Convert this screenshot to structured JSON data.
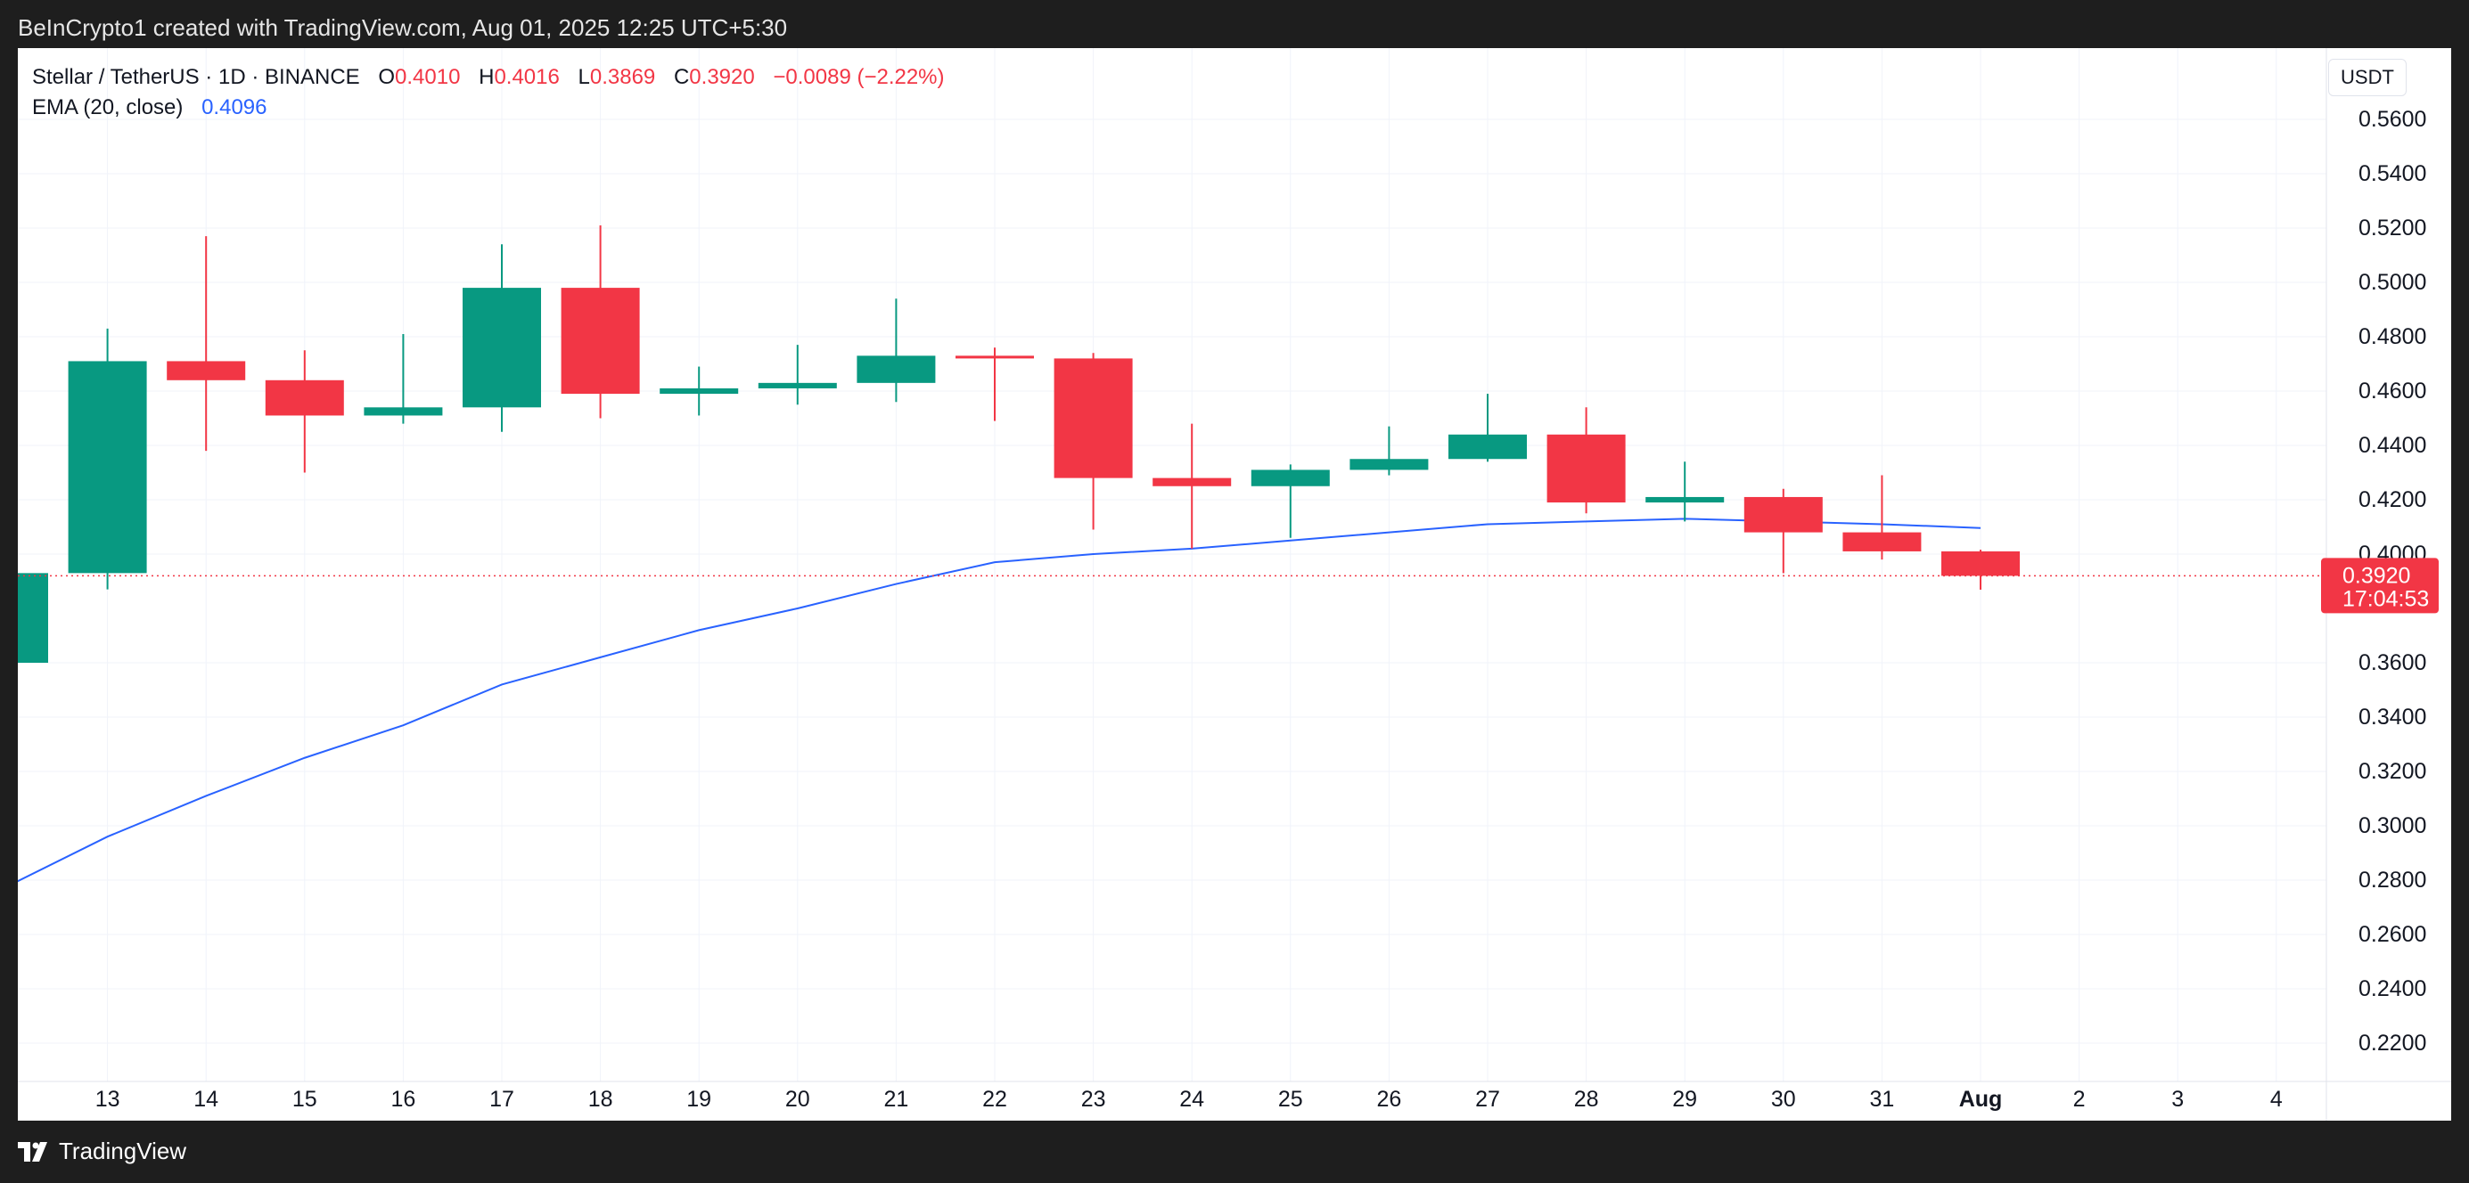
{
  "header": {
    "credit": "BeInCrypto1 created with TradingView.com, Aug 01, 2025 12:25 UTC+5:30"
  },
  "legend": {
    "symbol": "Stellar / TetherUS · 1D · BINANCE",
    "open_label": "O",
    "open": "0.4010",
    "high_label": "H",
    "high": "0.4016",
    "low_label": "L",
    "low": "0.3869",
    "close_label": "C",
    "close": "0.3920",
    "change": "−0.0089 (−2.22%)",
    "ema_label": "EMA (20, close)",
    "ema_value": "0.4096"
  },
  "currency": "USDT",
  "price_tag": {
    "price": "0.3920",
    "countdown": "17:04:53"
  },
  "footer": {
    "brand": "TradingView"
  },
  "colors": {
    "up": "#089981",
    "down": "#f23645",
    "ema": "#2962ff",
    "grid": "#f0f3fa"
  },
  "chart_data": {
    "type": "candlestick",
    "ylim": [
      0.21,
      0.57
    ],
    "y_ticks": [
      "0.5600",
      "0.5400",
      "0.5200",
      "0.5000",
      "0.4800",
      "0.4600",
      "0.4400",
      "0.4200",
      "0.4000",
      "0.3600",
      "0.3400",
      "0.3200",
      "0.3000",
      "0.2800",
      "0.2600",
      "0.2400",
      "0.2200"
    ],
    "x_ticks": [
      "2",
      "13",
      "14",
      "15",
      "16",
      "17",
      "18",
      "19",
      "20",
      "21",
      "22",
      "23",
      "24",
      "25",
      "26",
      "27",
      "28",
      "29",
      "30",
      "31",
      "Aug",
      "2",
      "3",
      "4"
    ],
    "candles": [
      {
        "date": "Jul 12",
        "open": 0.36,
        "high": 0.394,
        "low": 0.36,
        "close": 0.393
      },
      {
        "date": "Jul 13",
        "open": 0.393,
        "high": 0.483,
        "low": 0.387,
        "close": 0.471
      },
      {
        "date": "Jul 14",
        "open": 0.471,
        "high": 0.517,
        "low": 0.438,
        "close": 0.464
      },
      {
        "date": "Jul 15",
        "open": 0.464,
        "high": 0.475,
        "low": 0.43,
        "close": 0.451
      },
      {
        "date": "Jul 16",
        "open": 0.451,
        "high": 0.481,
        "low": 0.448,
        "close": 0.454
      },
      {
        "date": "Jul 17",
        "open": 0.454,
        "high": 0.514,
        "low": 0.445,
        "close": 0.498
      },
      {
        "date": "Jul 18",
        "open": 0.498,
        "high": 0.521,
        "low": 0.45,
        "close": 0.459
      },
      {
        "date": "Jul 19",
        "open": 0.459,
        "high": 0.469,
        "low": 0.451,
        "close": 0.461
      },
      {
        "date": "Jul 20",
        "open": 0.461,
        "high": 0.477,
        "low": 0.455,
        "close": 0.463
      },
      {
        "date": "Jul 21",
        "open": 0.463,
        "high": 0.494,
        "low": 0.456,
        "close": 0.473
      },
      {
        "date": "Jul 22",
        "open": 0.473,
        "high": 0.476,
        "low": 0.449,
        "close": 0.472
      },
      {
        "date": "Jul 23",
        "open": 0.472,
        "high": 0.474,
        "low": 0.409,
        "close": 0.428
      },
      {
        "date": "Jul 24",
        "open": 0.428,
        "high": 0.448,
        "low": 0.402,
        "close": 0.425
      },
      {
        "date": "Jul 25",
        "open": 0.425,
        "high": 0.433,
        "low": 0.406,
        "close": 0.431
      },
      {
        "date": "Jul 26",
        "open": 0.431,
        "high": 0.447,
        "low": 0.429,
        "close": 0.435
      },
      {
        "date": "Jul 27",
        "open": 0.435,
        "high": 0.459,
        "low": 0.434,
        "close": 0.444
      },
      {
        "date": "Jul 28",
        "open": 0.444,
        "high": 0.454,
        "low": 0.415,
        "close": 0.419
      },
      {
        "date": "Jul 29",
        "open": 0.419,
        "high": 0.434,
        "low": 0.412,
        "close": 0.421
      },
      {
        "date": "Jul 30",
        "open": 0.421,
        "high": 0.424,
        "low": 0.393,
        "close": 0.408
      },
      {
        "date": "Jul 31",
        "open": 0.408,
        "high": 0.429,
        "low": 0.398,
        "close": 0.401
      },
      {
        "date": "Aug 01",
        "open": 0.401,
        "high": 0.4016,
        "low": 0.3869,
        "close": 0.392
      }
    ],
    "ema_series": {
      "name": "EMA (20, close)",
      "values": [
        0.278,
        0.296,
        0.311,
        0.325,
        0.337,
        0.352,
        0.362,
        0.372,
        0.38,
        0.389,
        0.397,
        0.4,
        0.402,
        0.405,
        0.408,
        0.411,
        0.412,
        0.413,
        0.412,
        0.411,
        0.4096
      ]
    },
    "current_price": 0.392
  }
}
